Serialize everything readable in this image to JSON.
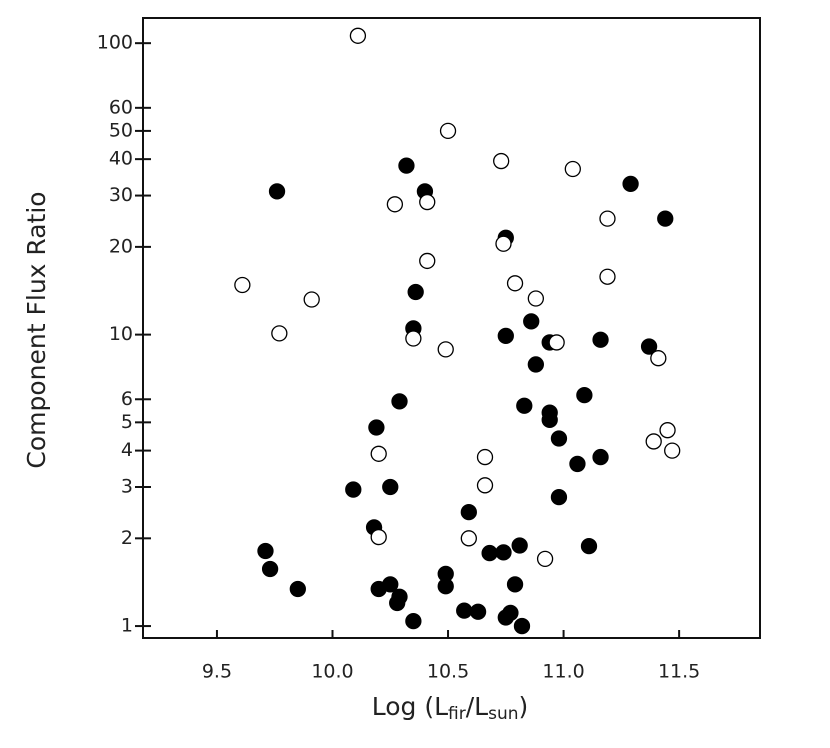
{
  "chart_data": {
    "type": "scatter",
    "x_label": {
      "prefix": "Log (L",
      "sub1": "fir",
      "mid": "/L",
      "sub2": "sun",
      "suffix": ")"
    },
    "y_label": "Component Flux Ratio",
    "xlim": [
      9.18,
      11.85
    ],
    "ylim": [
      0.91,
      122
    ],
    "y_log": true,
    "xticks": [
      9.5,
      {
        "value": 10,
        "label": "10.0"
      },
      10.5,
      {
        "value": 11,
        "label": "11.0"
      },
      11.5
    ],
    "yticks": [
      1,
      2,
      3,
      4,
      5,
      6,
      10,
      20,
      30,
      40,
      50,
      60,
      100
    ],
    "series": [
      {
        "color": "#000000",
        "marker": "filled",
        "x": [
          9.76,
          10.32,
          10.4,
          10.75,
          10.36,
          10.35,
          10.75,
          10.86,
          10.94,
          10.88,
          11.29,
          11.44,
          11.16,
          11.37,
          10.29,
          10.19,
          10.83,
          10.94,
          10.94,
          10.98,
          11.09,
          11.16,
          11.06,
          10.98,
          10.09,
          10.25,
          10.59,
          10.18,
          9.71,
          9.73,
          9.85,
          10.2,
          10.25,
          10.29,
          10.28,
          10.35,
          10.49,
          10.49,
          10.57,
          10.63,
          10.68,
          10.74,
          10.81,
          10.79,
          10.75,
          10.77,
          10.82,
          11.11
        ],
        "y": [
          31,
          38,
          31,
          21.5,
          14.0,
          10.5,
          9.9,
          11.1,
          9.4,
          7.9,
          32.9,
          25,
          9.6,
          9.1,
          5.9,
          4.8,
          5.7,
          5.4,
          5.1,
          4.4,
          6.2,
          3.8,
          3.6,
          2.77,
          2.94,
          3.0,
          2.46,
          2.18,
          1.81,
          1.57,
          1.34,
          1.34,
          1.39,
          1.26,
          1.2,
          1.04,
          1.51,
          1.37,
          1.13,
          1.12,
          1.78,
          1.79,
          1.89,
          1.39,
          1.07,
          1.11,
          1.0,
          1.88
        ]
      },
      {
        "color": "#000000",
        "marker": "open",
        "x": [
          10.11,
          10.5,
          9.61,
          9.91,
          9.77,
          10.27,
          10.41,
          10.41,
          10.35,
          10.49,
          10.2,
          10.2,
          10.74,
          10.73,
          10.79,
          10.88,
          10.97,
          10.66,
          10.66,
          10.59,
          10.92,
          11.04,
          11.19,
          11.19,
          11.41,
          11.45,
          11.39,
          11.47
        ],
        "y": [
          106,
          50,
          14.8,
          13.2,
          10.1,
          28,
          28.5,
          17.9,
          9.7,
          8.9,
          3.9,
          2.02,
          20.5,
          39.4,
          15.0,
          13.3,
          9.4,
          3.8,
          3.04,
          2.0,
          1.7,
          37,
          25,
          15.8,
          8.3,
          4.7,
          4.3,
          4.0
        ]
      }
    ]
  }
}
